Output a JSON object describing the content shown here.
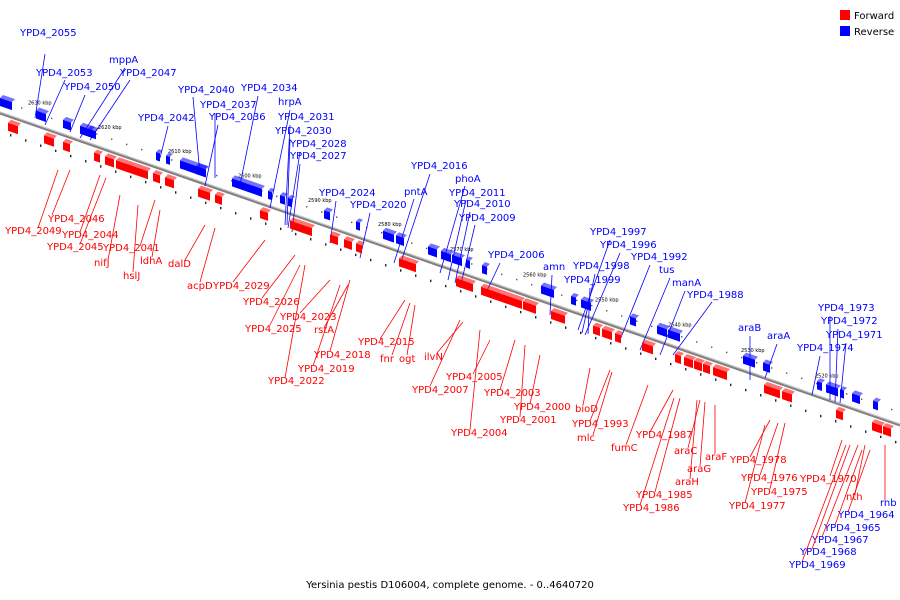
{
  "caption": "Yersinia pestis D106004, complete genome. - 0..4640720",
  "legend": {
    "forward": {
      "label": "Forward",
      "color": "#ff0000"
    },
    "reverse": {
      "label": "Reverse",
      "color": "#0000ff"
    }
  },
  "colors": {
    "forward": "#ff0000",
    "reverse": "#0000ff",
    "backbone": "#888888"
  },
  "kbp_ticks": [
    "2630 kbp",
    "2620 kbp",
    "2610 kbp",
    "2600 kbp",
    "2590 kbp",
    "2580 kbp",
    "2570 kbp",
    "2560 kbp",
    "2550 kbp",
    "2540 kbp",
    "2530 kbp",
    "2520 kbp"
  ],
  "reverse_genes": [
    "YPD4_2055",
    "YPD4_2053",
    "mppA",
    "YPD4_2047",
    "YPD4_2050",
    "YPD4_2040",
    "YPD4_2034",
    "YPD4_2037",
    "hrpA",
    "YPD4_2042",
    "YPD4_2036",
    "YPD4_2031",
    "YPD4_2030",
    "YPD4_2028",
    "YPD4_2027",
    "YPD4_2016",
    "phoA",
    "pntA",
    "YPD4_2024",
    "YPD4_2011",
    "YPD4_2010",
    "YPD4_2020",
    "YPD4_2009",
    "YPD4_2006",
    "amn",
    "YPD4_1997",
    "YPD4_1996",
    "YPD4_1992",
    "YPD4_1998",
    "tus",
    "YPD4_1999",
    "manA",
    "YPD4_1988",
    "araB",
    "araA",
    "YPD4_1973",
    "YPD4_1972",
    "YPD4_1971",
    "YPD4_1974"
  ],
  "forward_genes": [
    "YPD4_2046",
    "YPD4_2049",
    "YPD4_2044",
    "YPD4_2045",
    "YPD4_2041",
    "nifJ",
    "ldhA",
    "hslJ",
    "dalD",
    "acpD",
    "YPD4_2029",
    "YPD4_2026",
    "YPD4_2023",
    "YPD4_2025",
    "rstA",
    "YPD4_2015",
    "YPD4_2018",
    "fnr",
    "ogt",
    "YPD4_2019",
    "ilvN",
    "YPD4_2022",
    "YPD4_2005",
    "YPD4_2007",
    "YPD4_2003",
    "YPD4_2000",
    "YPD4_2001",
    "YPD4_2004",
    "bioD",
    "YPD4_1993",
    "mlc",
    "fumC",
    "YPD4_1987",
    "araC",
    "araF",
    "araG",
    "araH",
    "YPD4_1978",
    "YPD4_1976",
    "YPD4_1985",
    "YPD4_1975",
    "YPD4_1986",
    "YPD4_1977",
    "YPD4_1970",
    "nth",
    "rnb",
    "YPD4_1964",
    "YPD4_1965",
    "YPD4_1967",
    "YPD4_1968",
    "YPD4_1969"
  ]
}
